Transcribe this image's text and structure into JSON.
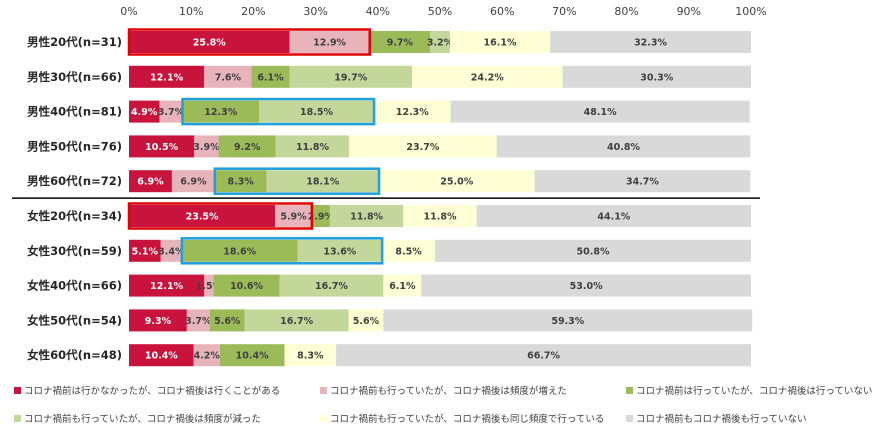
{
  "chart_data": {
    "type": "bar",
    "orientation": "horizontal",
    "stacked": true,
    "xlim": [
      0,
      100
    ],
    "x_ticks": [
      "0%",
      "10%",
      "20%",
      "30%",
      "40%",
      "50%",
      "60%",
      "70%",
      "80%",
      "90%",
      "100%"
    ],
    "categories": [
      "男性20代(n=31)",
      "男性30代(n=66)",
      "男性40代(n=81)",
      "男性50代(n=76)",
      "男性60代(n=72)",
      "女性20代(n=34)",
      "女性30代(n=59)",
      "女性40代(n=66)",
      "女性50代(n=54)",
      "女性60代(n=48)"
    ],
    "series": [
      {
        "name": "コロナ禍前は行かなかったが、コロナ禍後は行くことがある",
        "color": "#c8143c",
        "text_color": "#ffffff",
        "values": [
          25.8,
          12.1,
          4.9,
          10.5,
          6.9,
          23.5,
          5.1,
          12.1,
          9.3,
          10.4
        ],
        "labels": [
          "25.8%",
          "12.1%",
          "4.9%",
          "10.5%",
          "6.9%",
          "23.5%",
          "5.1%",
          "12.1%",
          "9.3%",
          "10.4%"
        ]
      },
      {
        "name": "コロナ禍前も行っていたが、コロナ禍後は頻度が増えた",
        "color": "#e8b4bb",
        "text_color": "#404040",
        "values": [
          12.9,
          7.6,
          3.7,
          3.9,
          6.9,
          5.9,
          3.4,
          1.5,
          3.7,
          4.2
        ],
        "labels": [
          "12.9%",
          "7.6%",
          "3.7%",
          "3.9%",
          "6.9%",
          "5.9%",
          "3.4%",
          "1.5%",
          "3.7%",
          "4.2%"
        ]
      },
      {
        "name": "コロナ禍前は行っていたが、コロナ禍後は行っていない",
        "color": "#9bbb59",
        "text_color": "#404040",
        "values": [
          9.7,
          6.1,
          12.3,
          9.2,
          8.3,
          2.9,
          18.6,
          10.6,
          5.6,
          10.4
        ],
        "labels": [
          "9.7%",
          "6.1%",
          "12.3%",
          "9.2%",
          "8.3%",
          "2.9%",
          "18.6%",
          "10.6%",
          "5.6%",
          "10.4%"
        ]
      },
      {
        "name": "コロナ禍前も行っていたが、コロナ禍後は頻度が減った",
        "color": "#c4d79b",
        "text_color": "#404040",
        "values": [
          3.2,
          19.7,
          18.5,
          11.8,
          18.1,
          11.8,
          13.6,
          16.7,
          16.7,
          0
        ],
        "labels": [
          "3.2%",
          "19.7%",
          "18.5%",
          "11.8%",
          "18.1%",
          "11.8%",
          "13.6%",
          "16.7%",
          "16.7%",
          ""
        ]
      },
      {
        "name": "コロナ禍前も行っていたが、コロナ禍後も同じ頻度で行っている",
        "color": "#ffffd5",
        "text_color": "#404040",
        "values": [
          16.1,
          24.2,
          12.3,
          23.7,
          25.0,
          11.8,
          8.5,
          6.1,
          5.6,
          8.3
        ],
        "labels": [
          "16.1%",
          "24.2%",
          "12.3%",
          "23.7%",
          "25.0%",
          "11.8%",
          "8.5%",
          "6.1%",
          "5.6%",
          "8.3%"
        ]
      },
      {
        "name": "コロナ禍前もコロナ禍後も行っていない",
        "color": "#d9d9d9",
        "text_color": "#404040",
        "values": [
          32.3,
          30.3,
          48.1,
          40.8,
          34.7,
          44.1,
          50.8,
          53.0,
          59.3,
          66.7
        ],
        "labels": [
          "32.3%",
          "30.3%",
          "48.1%",
          "40.8%",
          "34.7%",
          "44.1%",
          "50.8%",
          "53.0%",
          "59.3%",
          "66.7%"
        ]
      }
    ],
    "highlights": [
      {
        "row": 0,
        "from": 0,
        "to": 38.7,
        "color": "#e00000"
      },
      {
        "row": 2,
        "from": 8.6,
        "to": 39.4,
        "color": "#1ea0dc"
      },
      {
        "row": 4,
        "from": 13.8,
        "to": 40.2,
        "color": "#1ea0dc"
      },
      {
        "row": 5,
        "from": 0,
        "to": 29.4,
        "color": "#e00000"
      },
      {
        "row": 6,
        "from": 8.5,
        "to": 40.7,
        "color": "#1ea0dc"
      }
    ],
    "divider_after_row": 4
  }
}
